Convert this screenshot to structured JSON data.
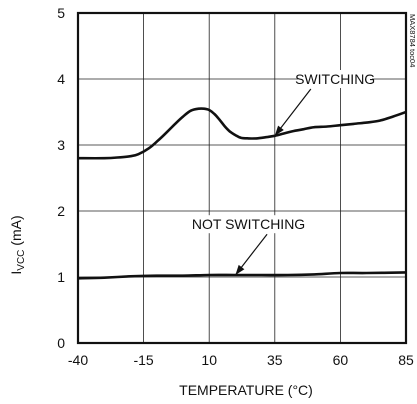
{
  "chart_data": {
    "type": "line",
    "title": "",
    "xlabel": "TEMPERATURE (°C)",
    "ylabel": {
      "main": "I",
      "sub": "VCC",
      "unit": " (mA)"
    },
    "xlim": [
      -40,
      85
    ],
    "ylim": [
      0,
      5
    ],
    "xticks": [
      -40,
      -15,
      10,
      35,
      60,
      85
    ],
    "yticks": [
      0,
      1,
      2,
      3,
      4,
      5
    ],
    "grid": true,
    "watermark": "MAX8784 toc04",
    "series": [
      {
        "name": "SWITCHING",
        "x": [
          -40,
          -30,
          -25,
          -20,
          -17,
          -13,
          -10,
          -6,
          -3,
          0,
          3,
          6,
          8,
          10,
          12,
          14,
          16,
          18,
          20,
          22,
          25,
          28,
          32,
          35,
          38,
          42,
          46,
          50,
          55,
          60,
          65,
          70,
          75,
          80,
          85
        ],
        "y": [
          2.8,
          2.8,
          2.81,
          2.83,
          2.86,
          2.95,
          3.05,
          3.2,
          3.32,
          3.43,
          3.52,
          3.55,
          3.55,
          3.53,
          3.47,
          3.38,
          3.28,
          3.2,
          3.15,
          3.11,
          3.1,
          3.1,
          3.12,
          3.14,
          3.17,
          3.21,
          3.24,
          3.27,
          3.28,
          3.3,
          3.32,
          3.34,
          3.37,
          3.43,
          3.5
        ]
      },
      {
        "name": "NOT SWITCHING",
        "x": [
          -40,
          -30,
          -20,
          -10,
          0,
          10,
          20,
          30,
          40,
          50,
          60,
          70,
          85
        ],
        "y": [
          0.98,
          0.99,
          1.01,
          1.02,
          1.02,
          1.03,
          1.03,
          1.03,
          1.03,
          1.04,
          1.06,
          1.06,
          1.07
        ]
      }
    ],
    "annotations": [
      {
        "text": "SWITCHING",
        "series": 0,
        "arrow_to": [
          35,
          3.14
        ],
        "label_at": [
          58,
          4.0
        ]
      },
      {
        "text": "NOT SWITCHING",
        "series": 1,
        "arrow_to": [
          20,
          1.03
        ],
        "label_at": [
          25,
          1.8
        ]
      }
    ]
  }
}
